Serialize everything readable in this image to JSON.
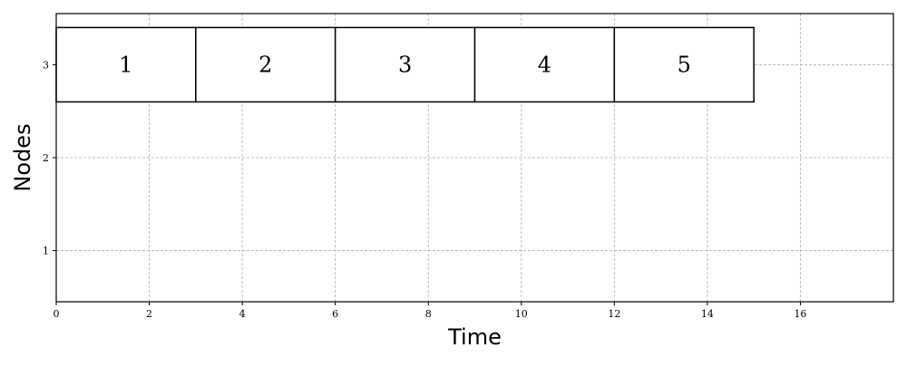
{
  "chart_data": {
    "type": "gantt",
    "xlabel": "Time",
    "ylabel": "Nodes",
    "xlim": [
      0,
      18
    ],
    "ylim": [
      0.45,
      3.55
    ],
    "x_ticks": [
      0,
      2,
      4,
      6,
      8,
      10,
      12,
      14,
      16
    ],
    "y_ticks": [
      1,
      2,
      3
    ],
    "grid": true,
    "blocks": [
      {
        "label": "1",
        "node": 3,
        "start": 0,
        "end": 3
      },
      {
        "label": "2",
        "node": 3,
        "start": 3,
        "end": 6
      },
      {
        "label": "3",
        "node": 3,
        "start": 6,
        "end": 9
      },
      {
        "label": "4",
        "node": 3,
        "start": 9,
        "end": 12
      },
      {
        "label": "5",
        "node": 3,
        "start": 12,
        "end": 15
      }
    ],
    "block_height": 0.8
  }
}
